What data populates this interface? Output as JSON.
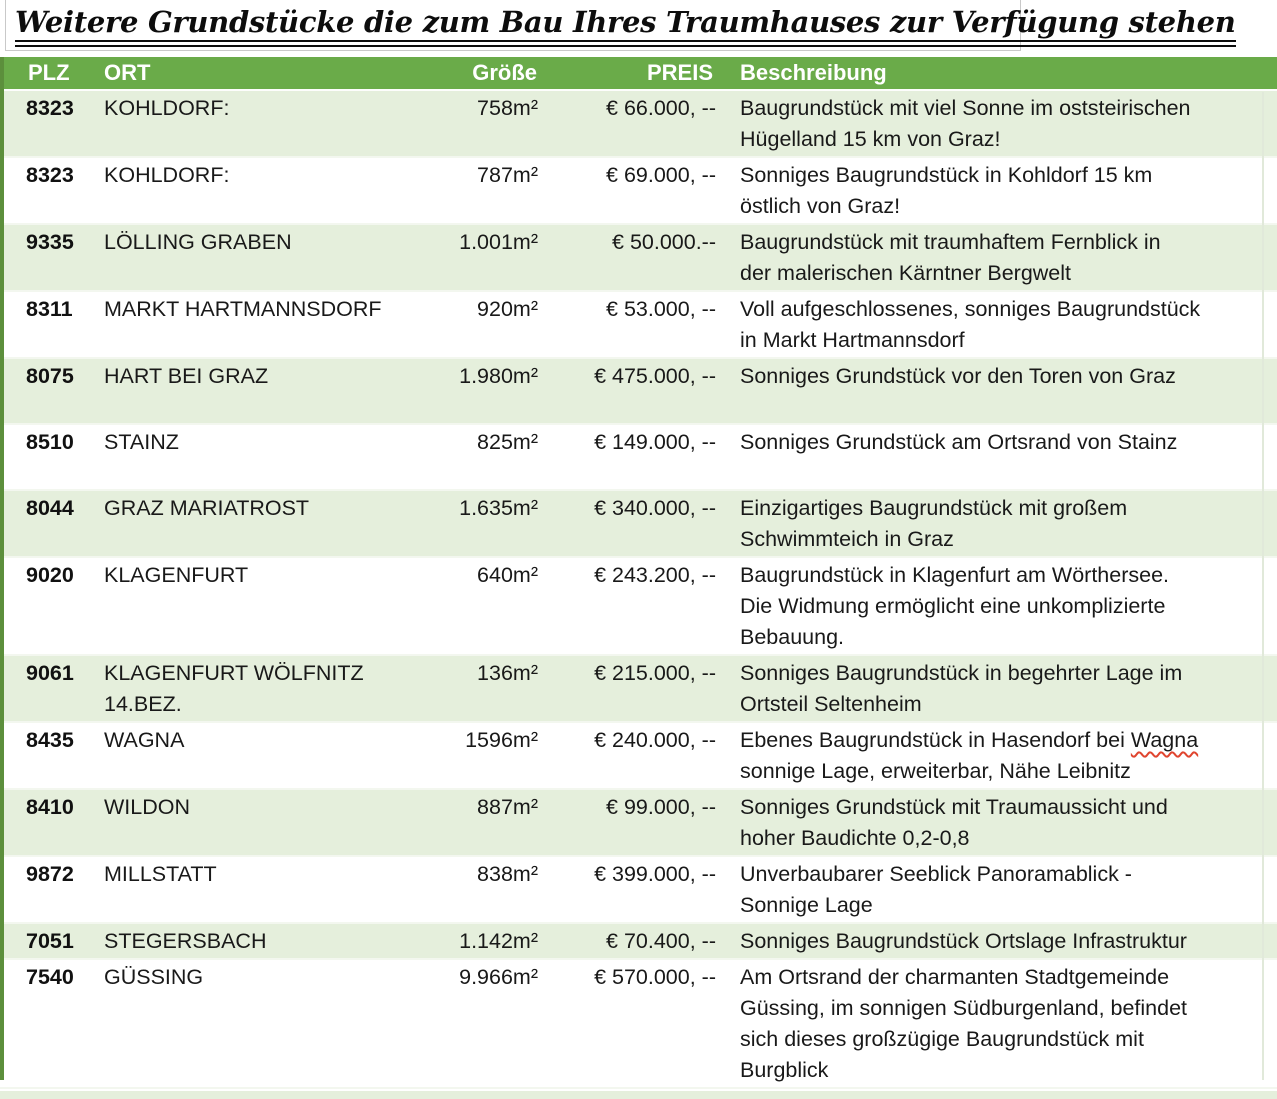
{
  "title": "Weitere Grundstücke die zum Bau Ihres Traumhauses zur Verfügung stehen",
  "colors": {
    "header_green": "#6aab49",
    "row_light_green": "#e5efdc",
    "row_white": "#ffffff",
    "left_edge_green": "#5c8f3c",
    "spellcheck_red": "#e0452f"
  },
  "table": {
    "columns": {
      "plz": "PLZ",
      "ort": "ORT",
      "groesse": "Größe",
      "preis": "PREIS",
      "beschreibung": "Beschreibung"
    },
    "rows": [
      {
        "plz": "8323",
        "ort_lines": [
          "KOHLDORF:"
        ],
        "groesse": "758m²",
        "preis": "€ 66.000, --",
        "beschreibung_lines": [
          "Baugrundstück mit viel Sonne im oststeirischen",
          "Hügelland 15 km von Graz!"
        ],
        "lines": 2
      },
      {
        "plz": "8323",
        "ort_lines": [
          "KOHLDORF:"
        ],
        "groesse": "787m²",
        "preis": "€ 69.000, --",
        "beschreibung_lines": [
          "Sonniges Baugrundstück in Kohldorf 15 km",
          "östlich von Graz!"
        ],
        "lines": 2
      },
      {
        "plz": "9335",
        "ort_lines": [
          "LÖLLING GRABEN"
        ],
        "groesse": "1.001m²",
        "preis": "€ 50.000.--",
        "beschreibung_lines": [
          "Baugrundstück mit traumhaftem Fernblick in",
          "der malerischen Kärntner Bergwelt"
        ],
        "lines": 2
      },
      {
        "plz": "8311",
        "ort_lines": [
          "MARKT HARTMANNSDORF"
        ],
        "groesse": "920m²",
        "preis": "€ 53.000, --",
        "beschreibung_lines": [
          "Voll aufgeschlossenes, sonniges Baugrundstück",
          "in Markt Hartmannsdorf"
        ],
        "lines": 2
      },
      {
        "plz": "8075",
        "ort_lines": [
          "HART BEI GRAZ"
        ],
        "groesse": "1.980m²",
        "preis": "€ 475.000, --",
        "beschreibung_lines": [
          "Sonniges Grundstück vor den Toren von Graz"
        ],
        "lines": 2
      },
      {
        "plz": "8510",
        "ort_lines": [
          "STAINZ"
        ],
        "groesse": "825m²",
        "preis": "€ 149.000, --",
        "beschreibung_lines": [
          "Sonniges Grundstück am Ortsrand von Stainz"
        ],
        "lines": 2
      },
      {
        "plz": "8044",
        "ort_lines": [
          "GRAZ MARIATROST"
        ],
        "groesse": "1.635m²",
        "preis": "€ 340.000, --",
        "beschreibung_lines": [
          "Einzigartiges Baugrundstück mit großem",
          "Schwimmteich in Graz"
        ],
        "lines": 2
      },
      {
        "plz": "9020",
        "ort_lines": [
          "KLAGENFURT"
        ],
        "groesse": "640m²",
        "preis": "€ 243.200, --",
        "beschreibung_lines": [
          "Baugrundstück in Klagenfurt am Wörthersee.",
          "Die Widmung ermöglicht eine unkomplizierte",
          "Bebauung."
        ],
        "lines": 3
      },
      {
        "plz": "9061",
        "ort_lines": [
          "KLAGENFURT WÖLFNITZ",
          "14.BEZ."
        ],
        "groesse": "136m²",
        "preis": "€ 215.000, --",
        "beschreibung_lines": [
          "Sonniges Baugrundstück in begehrter Lage im",
          "Ortsteil Seltenheim"
        ],
        "lines": 2
      },
      {
        "plz": "8435",
        "ort_lines": [
          "WAGNA"
        ],
        "groesse": "1596m²",
        "preis": "€ 240.000, --",
        "beschreibung_lines": [
          "Ebenes Baugrundstück in Hasendorf bei Wagna",
          "sonnige Lage, erweiterbar, Nähe Leibnitz"
        ],
        "spellcheck_word": "Wagna",
        "lines": 2
      },
      {
        "plz": "8410",
        "ort_lines": [
          "WILDON"
        ],
        "groesse": "887m²",
        "preis": "€ 99.000, --",
        "beschreibung_lines": [
          "Sonniges Grundstück mit Traumaussicht und",
          "hoher Baudichte 0,2-0,8"
        ],
        "lines": 2
      },
      {
        "plz": "9872",
        "ort_lines": [
          "MILLSTATT"
        ],
        "groesse": "838m²",
        "preis": "€ 399.000, --",
        "beschreibung_lines": [
          "Unverbaubarer Seeblick Panoramablick -",
          "Sonnige Lage"
        ],
        "lines": 2
      },
      {
        "plz": "7051",
        "ort_lines": [
          "STEGERSBACH"
        ],
        "groesse": "1.142m²",
        "preis": "€ 70.400, --",
        "beschreibung_lines": [
          "Sonniges Baugrundstück Ortslage Infrastruktur"
        ],
        "lines": 1
      },
      {
        "plz": "7540",
        "ort_lines": [
          "GÜSSING"
        ],
        "groesse": "9.966m²",
        "preis": "€ 570.000, --",
        "beschreibung_lines": [
          "Am Ortsrand der charmanten Stadtgemeinde",
          "Güssing, im sonnigen Südburgenland, befindet",
          "sich dieses großzügige Baugrundstück mit",
          "Burgblick"
        ],
        "lines": 4
      }
    ]
  }
}
